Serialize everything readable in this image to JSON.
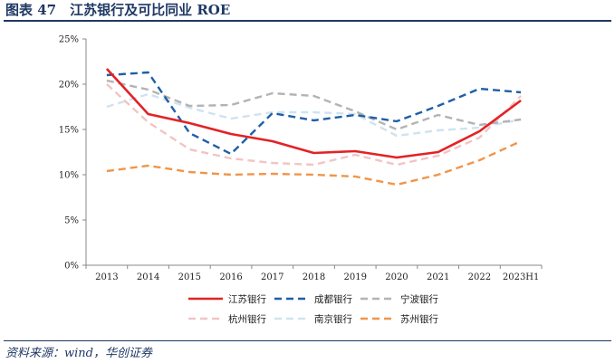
{
  "figure": {
    "title": "图表 47　江苏银行及可比同业 ROE",
    "source": "资料来源：wind，华创证券"
  },
  "chart_data": {
    "type": "line",
    "categories": [
      "2013",
      "2014",
      "2015",
      "2016",
      "2017",
      "2018",
      "2019",
      "2020",
      "2021",
      "2022",
      "2023H1"
    ],
    "ylim": [
      0,
      25
    ],
    "yticks": [
      "0%",
      "5%",
      "10%",
      "15%",
      "20%",
      "25%"
    ],
    "grid": false,
    "legend_position": "bottom",
    "series": [
      {
        "name": "江苏银行",
        "color": "#e32226",
        "dash": "solid",
        "values": [
          21.7,
          16.7,
          15.7,
          14.5,
          13.7,
          12.4,
          12.6,
          11.9,
          12.5,
          14.8,
          18.2
        ]
      },
      {
        "name": "成都银行",
        "color": "#1f5fa6",
        "dash": "dashed",
        "values": [
          21.0,
          21.3,
          14.6,
          12.3,
          16.8,
          16.0,
          16.6,
          15.9,
          17.6,
          19.5,
          19.1
        ]
      },
      {
        "name": "宁波银行",
        "color": "#b3b3b3",
        "dash": "dashed",
        "values": [
          20.4,
          19.4,
          17.6,
          17.7,
          19.0,
          18.7,
          17.0,
          15.0,
          16.6,
          15.5,
          16.1
        ]
      },
      {
        "name": "杭州银行",
        "color": "#f2c4c4",
        "dash": "dashed",
        "values": [
          20.0,
          15.8,
          12.8,
          11.8,
          11.3,
          11.1,
          12.2,
          11.1,
          12.1,
          14.1,
          18.7
        ]
      },
      {
        "name": "南京银行",
        "color": "#cfe3f0",
        "dash": "dashed",
        "values": [
          17.5,
          18.9,
          17.4,
          16.2,
          16.9,
          16.9,
          16.7,
          14.3,
          14.9,
          15.2,
          16.1
        ]
      },
      {
        "name": "苏州银行",
        "color": "#f0954a",
        "dash": "dashed",
        "values": [
          10.4,
          11.0,
          10.3,
          10.0,
          10.1,
          10.0,
          9.8,
          8.9,
          10.0,
          11.6,
          13.7
        ]
      }
    ]
  }
}
